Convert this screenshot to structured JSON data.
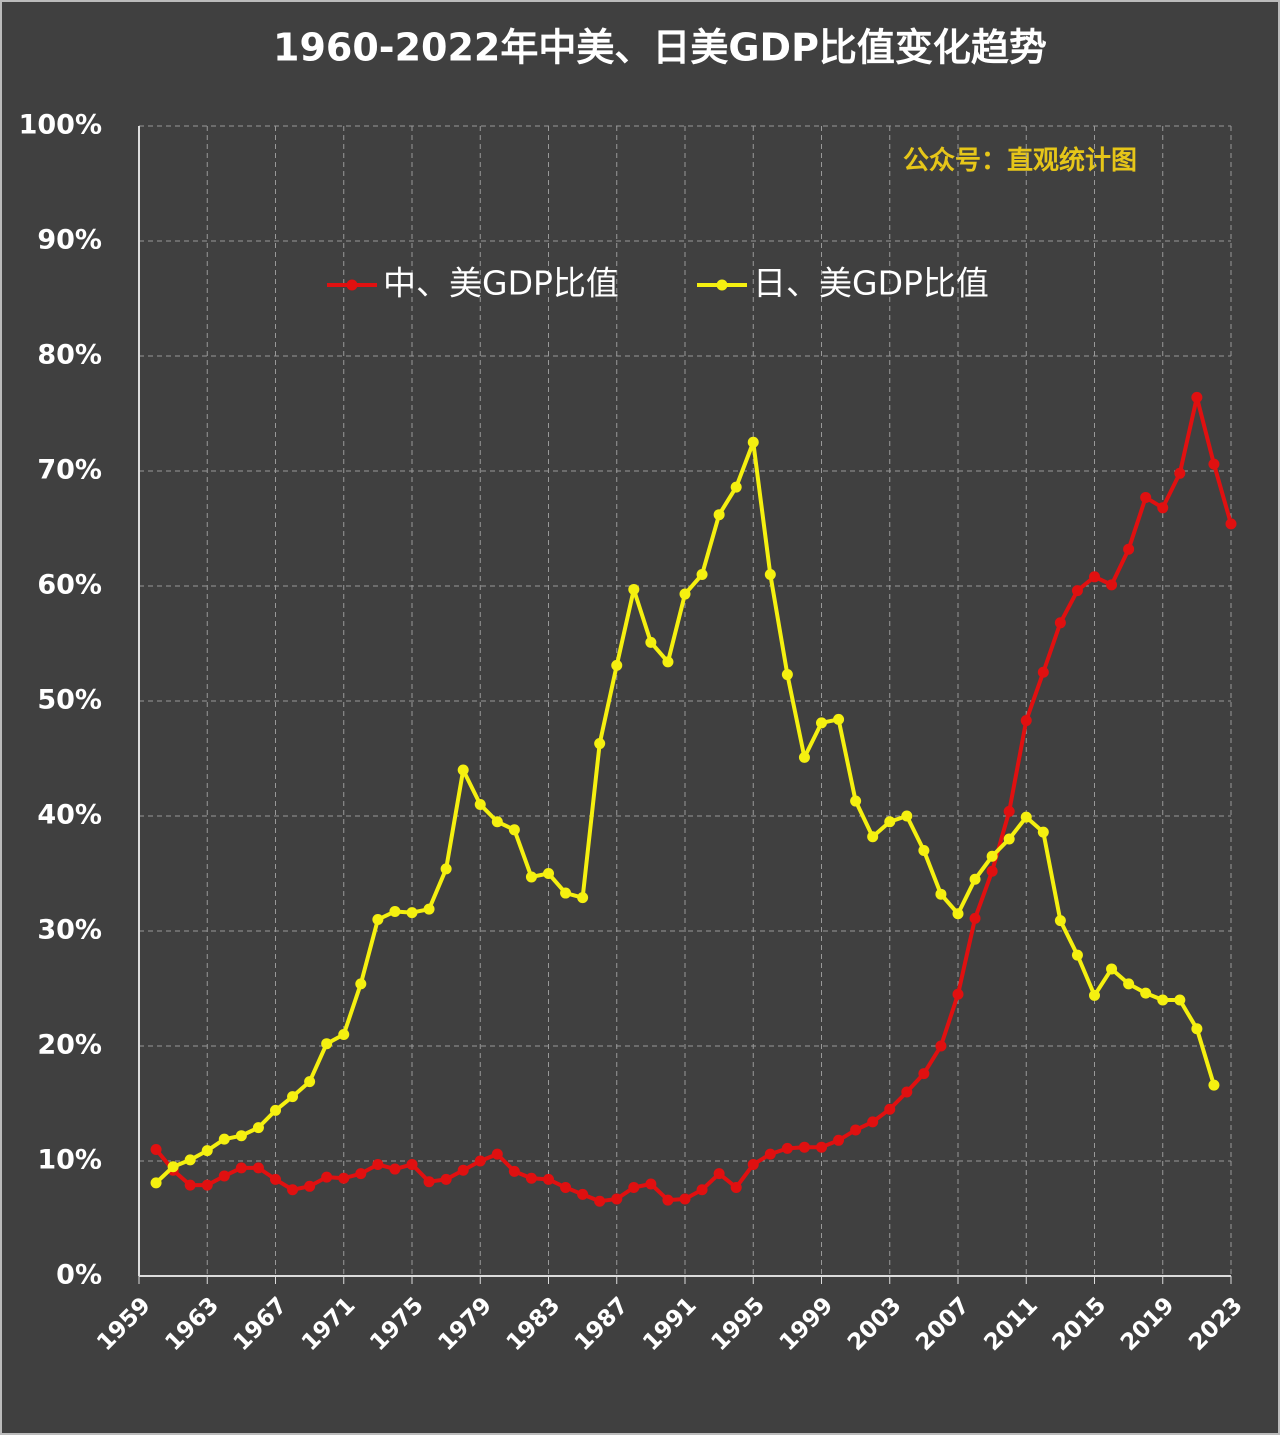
{
  "chart_data": {
    "type": "line",
    "title": "1960-2022年中美、日美GDP比值变化趋势",
    "annotation": "公众号：直观统计图",
    "x": [
      1960,
      1961,
      1962,
      1963,
      1964,
      1965,
      1966,
      1967,
      1968,
      1969,
      1970,
      1971,
      1972,
      1973,
      1974,
      1975,
      1976,
      1977,
      1978,
      1979,
      1980,
      1981,
      1982,
      1983,
      1984,
      1985,
      1986,
      1987,
      1988,
      1989,
      1990,
      1991,
      1992,
      1993,
      1994,
      1995,
      1996,
      1997,
      1998,
      1999,
      2000,
      2001,
      2002,
      2003,
      2004,
      2005,
      2006,
      2007,
      2008,
      2009,
      2010,
      2011,
      2012,
      2013,
      2014,
      2015,
      2016,
      2017,
      2018,
      2019,
      2020,
      2021,
      2022,
      2023
    ],
    "series": [
      {
        "name": "中、美GDP比值",
        "color": "#e01010",
        "values": [
          11.0,
          9.2,
          7.9,
          7.9,
          8.7,
          9.4,
          9.4,
          8.4,
          7.5,
          7.8,
          8.6,
          8.5,
          8.9,
          9.7,
          9.3,
          9.7,
          8.2,
          8.4,
          9.2,
          10.0,
          10.6,
          9.1,
          8.5,
          8.4,
          7.7,
          7.1,
          6.5,
          6.7,
          7.7,
          8.0,
          6.6,
          6.7,
          7.5,
          8.9,
          7.7,
          9.7,
          10.6,
          11.1,
          11.2,
          11.2,
          11.8,
          12.7,
          13.4,
          14.5,
          16.0,
          17.6,
          20.0,
          24.5,
          31.1,
          35.2,
          40.4,
          48.3,
          52.5,
          56.8,
          59.6,
          60.8,
          60.1,
          63.2,
          67.7,
          66.8,
          69.8,
          76.4,
          70.6,
          65.4
        ]
      },
      {
        "name": "日、美GDP比值",
        "color": "#f5f010",
        "values": [
          8.1,
          9.5,
          10.1,
          10.9,
          11.9,
          12.2,
          12.9,
          14.4,
          15.6,
          16.9,
          20.2,
          21.0,
          25.4,
          31.0,
          31.7,
          31.6,
          31.9,
          35.4,
          44.0,
          41.0,
          39.5,
          38.8,
          34.7,
          35.0,
          33.3,
          32.9,
          46.3,
          53.1,
          59.7,
          55.1,
          53.4,
          59.3,
          61.0,
          66.2,
          68.6,
          72.5,
          61.0,
          52.3,
          45.1,
          48.1,
          48.4,
          41.3,
          38.2,
          39.5,
          40.0,
          37.0,
          33.2,
          31.5,
          34.5,
          36.5,
          38.0,
          39.9,
          38.6,
          30.9,
          27.9,
          24.4,
          26.7,
          25.4,
          24.6,
          24.0,
          24.0,
          21.5,
          16.6,
          null
        ]
      }
    ],
    "xlim": [
      1959,
      2023
    ],
    "xticks": [
      1959,
      1963,
      1967,
      1971,
      1975,
      1979,
      1983,
      1987,
      1991,
      1995,
      1999,
      2003,
      2007,
      2011,
      2015,
      2019,
      2023
    ],
    "ylim": [
      0,
      100
    ],
    "yticks": [
      {
        "value": 0,
        "label": "0%"
      },
      {
        "value": 10,
        "label": "10%"
      },
      {
        "value": 20,
        "label": "20%"
      },
      {
        "value": 30,
        "label": "30%"
      },
      {
        "value": 40,
        "label": "40%"
      },
      {
        "value": 50,
        "label": "50%"
      },
      {
        "value": 60,
        "label": "60%"
      },
      {
        "value": 70,
        "label": "70%"
      },
      {
        "value": 80,
        "label": "80%"
      },
      {
        "value": 90,
        "label": "90%"
      },
      {
        "value": 100,
        "label": "100%"
      }
    ],
    "grid": true
  }
}
